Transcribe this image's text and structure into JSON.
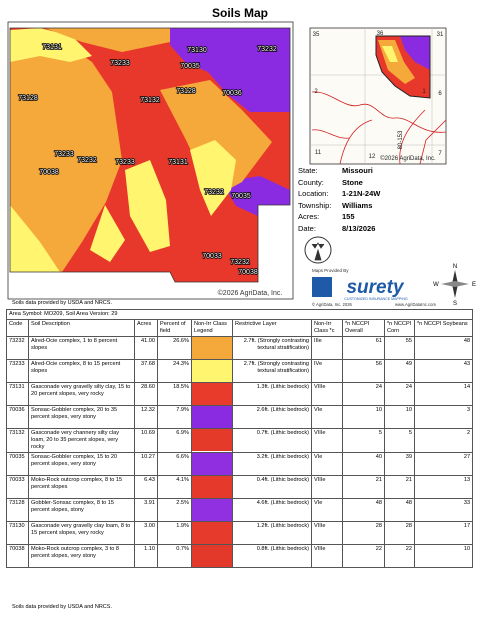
{
  "header": {
    "title": "Soils Map"
  },
  "map": {
    "labels": [
      "73131",
      "73233",
      "73130",
      "73232",
      "70035",
      "73128",
      "70036",
      "73132",
      "73128",
      "73233",
      "73232",
      "73233",
      "73131",
      "70038",
      "73232",
      "70035",
      "70033",
      "73232",
      "70038"
    ],
    "copyright": "©2026 AgriData, Inc."
  },
  "inset": {
    "labels": [
      "35",
      "36",
      "31",
      "2",
      "1",
      "6",
      "11",
      "12",
      "7",
      "80-153"
    ],
    "copyright": "©2026 AgriData, Inc."
  },
  "info": [
    [
      "State:",
      "Missouri"
    ],
    [
      "County:",
      "Stone"
    ],
    [
      "Location:",
      "1-21N-24W"
    ],
    [
      "Township:",
      "Williams"
    ],
    [
      "Acres:",
      "155"
    ],
    [
      "Date:",
      "8/13/2026"
    ]
  ],
  "logo": {
    "provided": "Maps Provided By",
    "brand": "surety",
    "tagline": "CUSTOMIZED INSURANCE MAPPING",
    "credit": "© AgriData, Inc. 2026",
    "url": "www.AgriDataInc.com",
    "compass": [
      "N",
      "S",
      "E",
      "W"
    ]
  },
  "source_top": "Soils data provided by USDA and NRCS.",
  "table": {
    "area": "Area Symbol: MO209, Soil Area Version: 29",
    "headers": [
      "Code",
      "Soil Description",
      "Acres",
      "Percent of field",
      "Non-Irr Class Legend",
      "Restrictive Layer",
      "Non-Irr Class *c",
      "*n NCCPI Overall",
      "*n NCCPI Corn",
      "*n NCCPI Soybeans"
    ],
    "rows": [
      [
        "73232",
        "Alred-Ocie complex, 1 to 8 percent slopes",
        "41.00",
        "26.6%",
        "#f5a93a",
        "2.7ft. (Strongly contrasting textural stratification)",
        "IIIe",
        61,
        55,
        48
      ],
      [
        "73233",
        "Alred-Ocie complex, 8 to 15 percent slopes",
        "37.68",
        "24.3%",
        "#fff56e",
        "2.7ft. (Strongly contrasting textural stratification)",
        "IVe",
        56,
        49,
        43
      ],
      [
        "73131",
        "Gasconade very gravelly silty clay, 15 to 20 percent slopes, very rocky",
        "28.60",
        "18.5%",
        "#e83b2c",
        "1.3ft. (Lithic bedrock)",
        "VIIIe",
        24,
        24,
        14
      ],
      [
        "70036",
        "Sonsac-Gobbler complex, 20 to 35 percent slopes, very stony",
        "12.32",
        "7.9%",
        "#8a2be2",
        "2.6ft. (Lithic bedrock)",
        "VIe",
        10,
        10,
        3
      ],
      [
        "73132",
        "Gasconade very channery silty clay loam, 20 to 35 percent slopes, very rocky",
        "10.69",
        "6.9%",
        "#e43a2a",
        "0.7ft. (Lithic bedrock)",
        "VIIIe",
        5,
        5,
        2
      ],
      [
        "70035",
        "Sonsac-Gobbler complex, 15 to 20 percent slopes, very stony",
        "10.27",
        "6.6%",
        "#8f2fe0",
        "3.2ft. (Lithic bedrock)",
        "VIe",
        40,
        39,
        27
      ],
      [
        "70033",
        "Moko-Rock outcrop complex, 8 to 15 percent slopes",
        "6.43",
        "4.1%",
        "#e5392b",
        "0.4ft. (Lithic bedrock)",
        "VIIIe",
        21,
        21,
        13
      ],
      [
        "73128",
        "Gobbler-Sonsac complex, 8 to 15 percent slopes, stony",
        "3.91",
        "2.5%",
        "#9030e0",
        "4.6ft. (Lithic bedrock)",
        "VIe",
        48,
        48,
        33
      ],
      [
        "73130",
        "Gasconade very gravelly clay loam, 8 to 15 percent slopes, very rocky",
        "3.00",
        "1.9%",
        "#e63a2c",
        "1.2ft. (Lithic bedrock)",
        "VIIIe",
        28,
        28,
        17
      ],
      [
        "70038",
        "Moko-Rock outcrop complex, 3 to 8 percent slopes, very stony",
        "1.10",
        "0.7%",
        "#e3392a",
        "0.8ft. (Lithic bedrock)",
        "VIIIe",
        22,
        22,
        10
      ]
    ]
  },
  "source_bottom": "Soils data provided by USDA and NRCS."
}
